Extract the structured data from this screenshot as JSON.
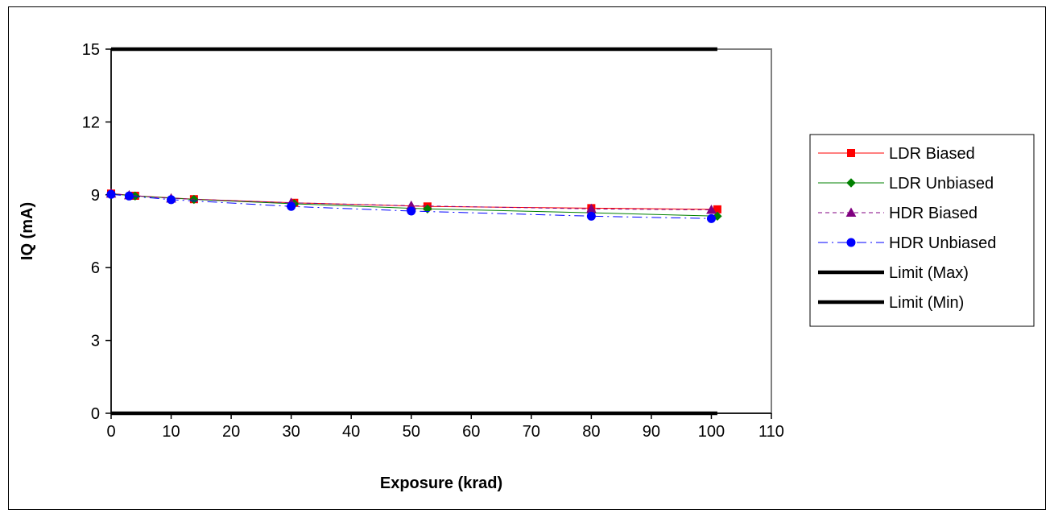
{
  "chart_data": {
    "type": "line",
    "title": "",
    "xlabel": "Exposure (krad)",
    "ylabel": "IQ (mA)",
    "xlim": [
      0,
      110
    ],
    "ylim": [
      0,
      15
    ],
    "xticks": [
      0,
      10,
      20,
      30,
      40,
      50,
      60,
      70,
      80,
      90,
      100,
      110
    ],
    "yticks": [
      0,
      3,
      6,
      9,
      12,
      15
    ],
    "grid": false,
    "legend_position": "right",
    "series": [
      {
        "name": "LDR Biased",
        "color": "#ff0000",
        "marker": "square",
        "dash": "solid",
        "x": [
          0,
          4,
          13.8,
          30.5,
          52.7,
          80,
          101
        ],
        "y": [
          9.05,
          8.96,
          8.82,
          8.67,
          8.52,
          8.45,
          8.4
        ]
      },
      {
        "name": "LDR Unbiased",
        "color": "#008000",
        "marker": "diamond",
        "dash": "solid",
        "x": [
          0,
          4,
          13.8,
          30.5,
          52.7,
          80,
          101
        ],
        "y": [
          9.04,
          8.95,
          8.81,
          8.63,
          8.42,
          8.26,
          8.12
        ]
      },
      {
        "name": "HDR Biased",
        "color": "#800080",
        "marker": "triangle",
        "dash": "dashed",
        "x": [
          0,
          3,
          10,
          30,
          50,
          80,
          100
        ],
        "y": [
          9.05,
          8.98,
          8.85,
          8.67,
          8.55,
          8.42,
          8.38
        ]
      },
      {
        "name": "HDR Unbiased",
        "color": "#0000ff",
        "marker": "circle",
        "dash": "dashdot",
        "x": [
          0,
          3,
          10,
          30,
          50,
          80,
          100
        ],
        "y": [
          9.02,
          8.95,
          8.8,
          8.52,
          8.33,
          8.12,
          8.02
        ]
      },
      {
        "name": "Limit (Max)",
        "color": "#000000",
        "marker": "none",
        "dash": "thick",
        "x": [
          0,
          101
        ],
        "y": [
          15,
          15
        ]
      },
      {
        "name": "Limit (Min)",
        "color": "#000000",
        "marker": "none",
        "dash": "thick",
        "x": [
          0,
          101
        ],
        "y": [
          0,
          0
        ]
      }
    ]
  }
}
